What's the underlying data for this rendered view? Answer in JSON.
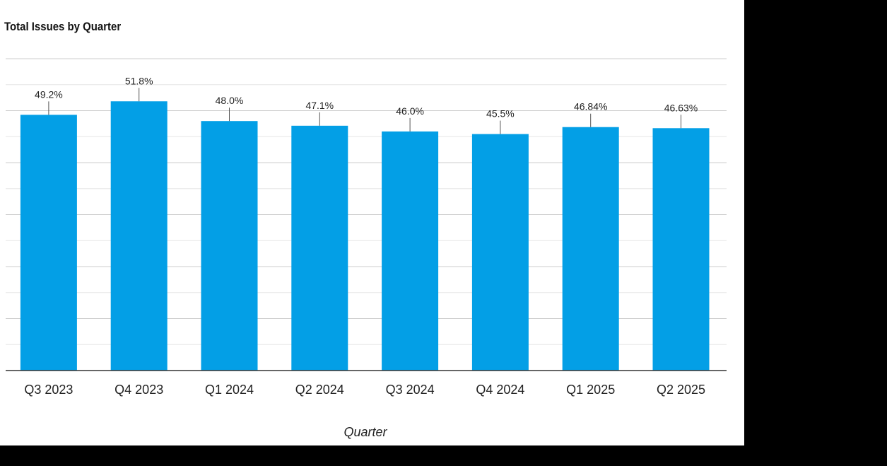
{
  "chart_data": {
    "type": "bar",
    "title": "Total Issues by Quarter",
    "xlabel": "Quarter",
    "ylabel": "",
    "categories": [
      "Q3 2023",
      "Q4 2023",
      "Q1 2024",
      "Q2 2024",
      "Q3 2024",
      "Q4 2024",
      "Q1 2025",
      "Q2 2025"
    ],
    "values": [
      49.2,
      51.8,
      48.0,
      47.1,
      46.0,
      45.5,
      46.84,
      46.63
    ],
    "data_labels": [
      "49.2%",
      "51.8%",
      "48.0%",
      "47.1%",
      "46.0%",
      "45.5%",
      "46.84%",
      "46.63%"
    ],
    "ylim": [
      0,
      60
    ],
    "grid": true,
    "bar_color": "#039fe6",
    "background_color": "#ffffff"
  }
}
